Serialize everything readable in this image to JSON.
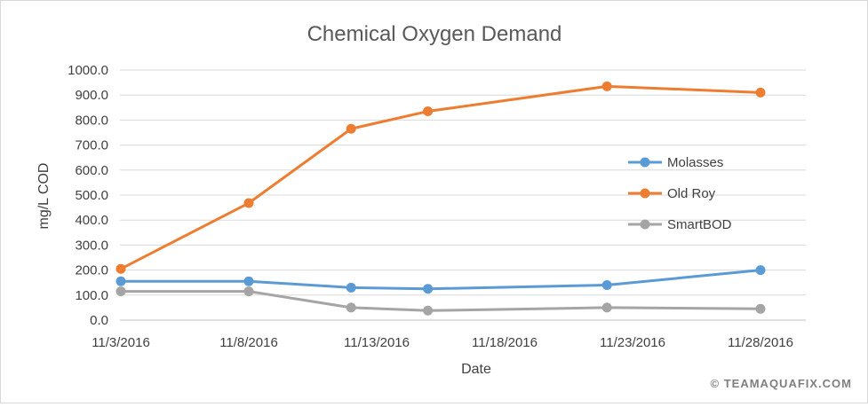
{
  "chart_data": {
    "type": "line",
    "title": "Chemical Oxygen Demand",
    "xlabel": "Date",
    "ylabel": "mg/L COD",
    "ylim": [
      0,
      1000
    ],
    "y_ticks": [
      "0.0",
      "100.0",
      "200.0",
      "300.0",
      "400.0",
      "500.0",
      "600.0",
      "700.0",
      "800.0",
      "900.0",
      "1000.0"
    ],
    "x_ticks": [
      "11/3/2016",
      "11/8/2016",
      "11/13/2016",
      "11/18/2016",
      "11/23/2016",
      "11/28/2016"
    ],
    "x": [
      "11/3/2016",
      "11/8/2016",
      "11/12/2016",
      "11/15/2016",
      "11/22/2016",
      "11/28/2016"
    ],
    "grid": "horizontal",
    "legend_position": "right",
    "series": [
      {
        "name": "Molasses",
        "color": "#5b9bd5",
        "values": [
          155,
          155,
          130,
          125,
          140,
          200
        ]
      },
      {
        "name": "Old Roy",
        "color": "#ed7d31",
        "values": [
          205,
          468,
          765,
          835,
          935,
          910
        ]
      },
      {
        "name": "SmartBOD",
        "color": "#a5a5a5",
        "values": [
          115,
          115,
          50,
          38,
          50,
          45
        ]
      }
    ]
  },
  "watermark": "© TEAMAQUAFIX.COM"
}
